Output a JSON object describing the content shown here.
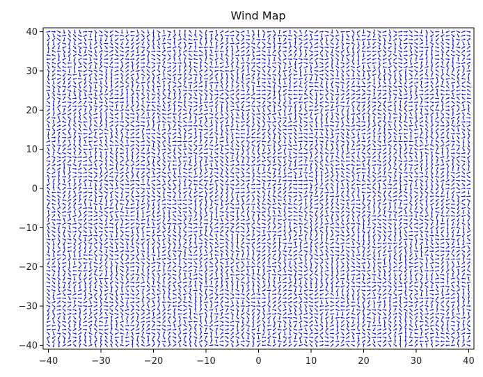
{
  "chart_data": {
    "type": "quiver",
    "title": "Wind Map",
    "xlabel": "",
    "ylabel": "",
    "xlim": [
      -41,
      41
    ],
    "ylim": [
      -41,
      41
    ],
    "x_ticks": [
      -40,
      -30,
      -20,
      -10,
      0,
      10,
      20,
      30,
      40
    ],
    "y_ticks": [
      -40,
      -30,
      -20,
      -10,
      0,
      10,
      20,
      30,
      40
    ],
    "x_tick_labels": [
      "−40",
      "−30",
      "−20",
      "−10",
      "0",
      "10",
      "20",
      "30",
      "40"
    ],
    "y_tick_labels": [
      "−40",
      "−30",
      "−20",
      "−10",
      "0",
      "10",
      "20",
      "30",
      "40"
    ],
    "grid": false,
    "legend": "none",
    "arrow_color": "#0000ff",
    "field": {
      "x_range": [
        -40,
        40
      ],
      "y_range": [
        -40,
        40
      ],
      "spacing": 1,
      "direction_note": "wind direction varies smoothly with diagonal banding from lower-left to upper-right"
    }
  }
}
